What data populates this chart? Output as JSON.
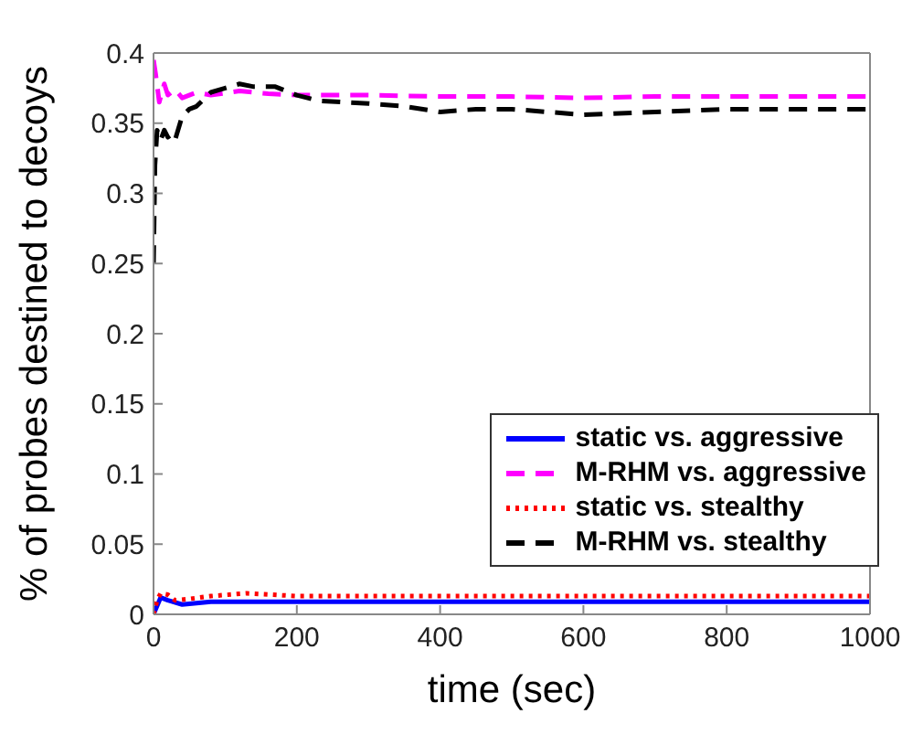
{
  "chart_data": {
    "type": "line",
    "xlabel": "time (sec)",
    "ylabel": "% of probes destined to decoys",
    "xlim": [
      0,
      1000
    ],
    "xticks": [
      0,
      200,
      400,
      600,
      800,
      1000
    ],
    "ylim": [
      0,
      0.4
    ],
    "yticks": [
      0,
      0.05,
      0.1,
      0.15,
      0.2,
      0.25,
      0.3,
      0.35,
      0.4
    ],
    "grid": false,
    "legend": "bottom right",
    "marker": "none",
    "series": [
      {
        "name": "static vs. aggressive",
        "color": "#0000ff",
        "line_style": "solid",
        "x": [
          0,
          5,
          10,
          20,
          40,
          60,
          80,
          120,
          200,
          300,
          400,
          500,
          600,
          700,
          800,
          900,
          1000
        ],
        "values": [
          0,
          0.006,
          0.012,
          0.01,
          0.007,
          0.008,
          0.009,
          0.009,
          0.009,
          0.009,
          0.009,
          0.009,
          0.009,
          0.009,
          0.009,
          0.009,
          0.009
        ]
      },
      {
        "name": "M-RHM vs. aggressive",
        "color": "#ff00ff",
        "line_style": "dashed",
        "x": [
          0,
          3,
          8,
          15,
          20,
          30,
          40,
          60,
          80,
          120,
          160,
          200,
          300,
          400,
          500,
          600,
          700,
          800,
          900,
          1000
        ],
        "values": [
          0.395,
          0.385,
          0.365,
          0.378,
          0.37,
          0.374,
          0.368,
          0.372,
          0.37,
          0.373,
          0.371,
          0.37,
          0.37,
          0.369,
          0.369,
          0.368,
          0.369,
          0.369,
          0.369,
          0.369
        ]
      },
      {
        "name": "static vs. stealthy",
        "color": "#ff0000",
        "line_style": "dotted",
        "x": [
          0,
          5,
          10,
          20,
          30,
          50,
          80,
          130,
          200,
          300,
          400,
          500,
          600,
          700,
          800,
          900,
          1000
        ],
        "values": [
          0,
          0.01,
          0.015,
          0.014,
          0.01,
          0.011,
          0.013,
          0.015,
          0.013,
          0.013,
          0.013,
          0.013,
          0.013,
          0.013,
          0.013,
          0.013,
          0.013
        ]
      },
      {
        "name": "M-RHM vs. stealthy",
        "color": "#000000",
        "line_style": "dashed",
        "x": [
          0,
          2,
          5,
          10,
          15,
          20,
          25,
          30,
          40,
          50,
          60,
          80,
          100,
          120,
          140,
          170,
          200,
          230,
          300,
          350,
          400,
          450,
          500,
          600,
          700,
          800,
          900,
          1000
        ],
        "values": [
          0.25,
          0.32,
          0.345,
          0.338,
          0.345,
          0.34,
          0.342,
          0.338,
          0.355,
          0.36,
          0.362,
          0.372,
          0.375,
          0.378,
          0.376,
          0.376,
          0.37,
          0.366,
          0.364,
          0.362,
          0.358,
          0.36,
          0.36,
          0.356,
          0.358,
          0.36,
          0.36,
          0.36
        ]
      }
    ]
  }
}
